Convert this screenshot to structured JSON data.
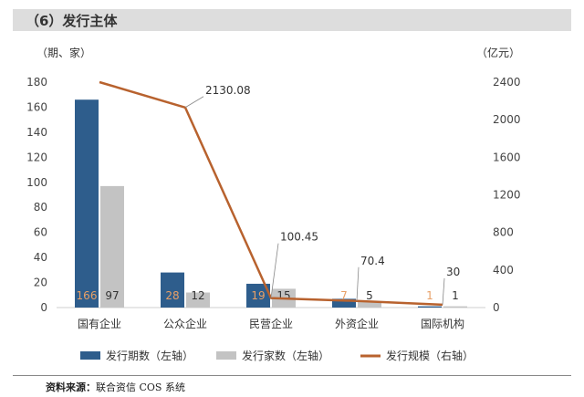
{
  "header": {
    "title": "（6）发行主体"
  },
  "source": {
    "label": "资料来源：",
    "text": "联合资信 COS 系统"
  },
  "chart_data": {
    "type": "bar",
    "categories": [
      "国有企业",
      "公众企业",
      "民营企业",
      "外资企业",
      "国际机构"
    ],
    "y_left_unit": "（期、家）",
    "y_right_unit": "（亿元）",
    "y_left_ticks": [
      0,
      20,
      40,
      60,
      80,
      100,
      120,
      140,
      160,
      180
    ],
    "y_right_ticks": [
      0,
      400,
      800,
      1200,
      1600,
      2000,
      2400
    ],
    "ylim_left": [
      0,
      180
    ],
    "ylim_right": [
      0,
      2400
    ],
    "series": [
      {
        "name": "发行期数（左轴）",
        "type": "bar",
        "axis": "left",
        "color": "#2e5d8c",
        "values": [
          166,
          28,
          19,
          7,
          1
        ],
        "labels": [
          "166",
          "28",
          "19",
          "7",
          "1"
        ]
      },
      {
        "name": "发行家数（左轴）",
        "type": "bar",
        "axis": "left",
        "color": "#c3c3c3",
        "values": [
          97,
          12,
          15,
          5,
          1
        ],
        "labels": [
          "97",
          "12",
          "15",
          "5",
          "1"
        ]
      },
      {
        "name": "发行规模（右轴）",
        "type": "line",
        "axis": "right",
        "color": "#b8622e",
        "values": [
          2400,
          2130.08,
          100.45,
          70.4,
          30
        ],
        "labels": [
          "",
          "2130.08",
          "100.45",
          "70.4",
          "30"
        ]
      }
    ],
    "legend_position": "bottom",
    "grid": false
  }
}
